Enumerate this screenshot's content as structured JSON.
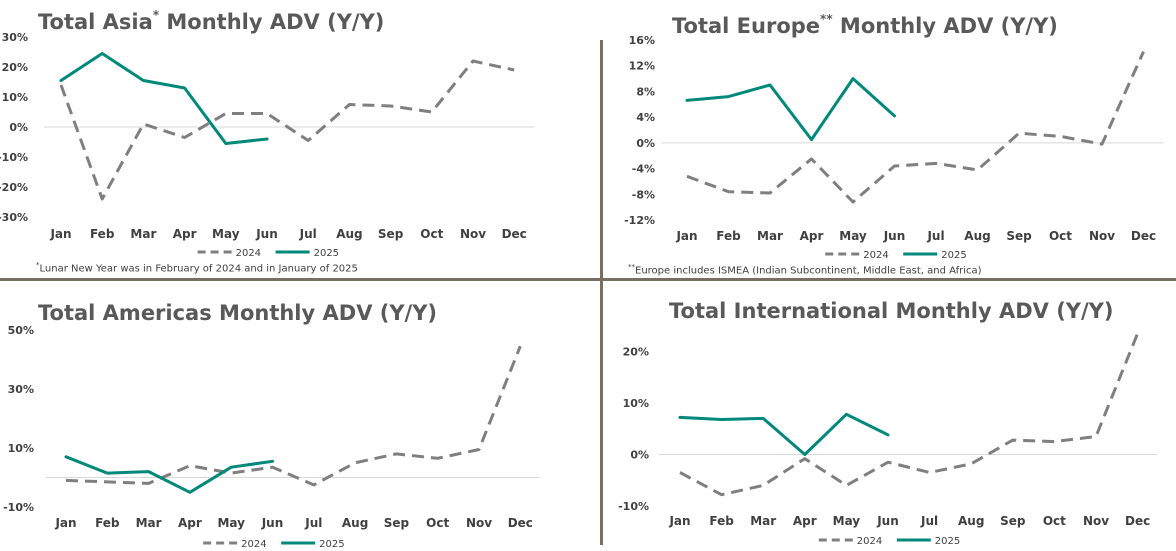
{
  "colors": {
    "s2024": "#7f7f7f",
    "s2025": "#00897b",
    "axis": "#d9d9d9",
    "divider": "#7a6e63",
    "title": "#595959"
  },
  "chart_data": [
    {
      "type": "line",
      "title": "Total Asia",
      "title_mark": "*",
      "title_suffix": " Monthly ADV (Y/Y)",
      "categories": [
        "Jan",
        "Feb",
        "Mar",
        "Apr",
        "May",
        "Jun",
        "Jul",
        "Aug",
        "Sep",
        "Oct",
        "Nov",
        "Dec"
      ],
      "ylim": [
        -30,
        30
      ],
      "yticks": [
        -30,
        -20,
        -10,
        0,
        10,
        20,
        30
      ],
      "ytick_labels": [
        "-30%",
        "-20%",
        "-10%",
        "0%",
        "10%",
        "20%",
        "30%"
      ],
      "series": [
        {
          "name": "2024",
          "values": [
            14,
            -24,
            1,
            -3.5,
            4.5,
            4.5,
            -4.5,
            7.5,
            7,
            5,
            22,
            19
          ]
        },
        {
          "name": "2025",
          "values": [
            15.5,
            24.5,
            15.5,
            13,
            -5.5,
            -4,
            null,
            null,
            null,
            null,
            null,
            null
          ]
        }
      ],
      "note_mark": "*",
      "note": "Lunar New Year was in February of 2024 and in January of 2025",
      "legend": "bottom"
    },
    {
      "type": "line",
      "title": "Total Europe",
      "title_mark": "**",
      "title_suffix": " Monthly ADV (Y/Y)",
      "categories": [
        "Jan",
        "Feb",
        "Mar",
        "Apr",
        "May",
        "Jun",
        "Jul",
        "Aug",
        "Sep",
        "Oct",
        "Nov",
        "Dec"
      ],
      "ylim": [
        -12,
        16
      ],
      "yticks": [
        -12,
        -8,
        -4,
        0,
        4,
        8,
        12,
        16
      ],
      "ytick_labels": [
        "-12%",
        "-8%",
        "-4%",
        "0%",
        "4%",
        "8%",
        "12%",
        "16%"
      ],
      "series": [
        {
          "name": "2024",
          "values": [
            -5.2,
            -7.6,
            -7.8,
            -2.5,
            -9.2,
            -3.6,
            -3.2,
            -4.2,
            1.5,
            1,
            -0.2,
            14.2
          ]
        },
        {
          "name": "2025",
          "values": [
            6.6,
            7.2,
            9,
            0.5,
            10,
            4.2,
            null,
            null,
            null,
            null,
            null,
            null
          ]
        }
      ],
      "note_mark": "**",
      "note": "Europe includes ISMEA (Indian Subcontinent, Middle East, and Africa)",
      "legend": "bottom"
    },
    {
      "type": "line",
      "title": "Total Americas",
      "title_mark": "",
      "title_suffix": " Monthly ADV (Y/Y)",
      "categories": [
        "Jan",
        "Feb",
        "Mar",
        "Apr",
        "May",
        "Jun",
        "Jul",
        "Aug",
        "Sep",
        "Oct",
        "Nov",
        "Dec"
      ],
      "ylim": [
        -10,
        50
      ],
      "yticks": [
        -10,
        10,
        30,
        50
      ],
      "ytick_labels": [
        "-10%",
        "10%",
        "30%",
        "50%"
      ],
      "series": [
        {
          "name": "2024",
          "values": [
            -1,
            -1.5,
            -2,
            4,
            1.5,
            3.5,
            -2.5,
            5,
            8,
            6.5,
            9.5,
            44.5
          ]
        },
        {
          "name": "2025",
          "values": [
            7,
            1.5,
            2,
            -5,
            3.5,
            5.5,
            null,
            null,
            null,
            null,
            null,
            null
          ]
        }
      ],
      "legend": "bottom"
    },
    {
      "type": "line",
      "title": "Total International",
      "title_mark": "",
      "title_suffix": " Monthly ADV (Y/Y)",
      "categories": [
        "Jan",
        "Feb",
        "Mar",
        "Apr",
        "May",
        "Jun",
        "Jul",
        "Aug",
        "Sep",
        "Oct",
        "Nov",
        "Dec"
      ],
      "ylim": [
        -10,
        23
      ],
      "yticks": [
        -10,
        0,
        10,
        20
      ],
      "ytick_labels": [
        "-10%",
        "0%",
        "10%",
        "20%"
      ],
      "series": [
        {
          "name": "2024",
          "values": [
            -3.5,
            -7.8,
            -6,
            -0.8,
            -6,
            -1.5,
            -3.5,
            -1.8,
            2.8,
            2.5,
            3.5,
            23.5
          ]
        },
        {
          "name": "2025",
          "values": [
            7.2,
            6.8,
            7,
            0,
            7.8,
            3.8,
            null,
            null,
            null,
            null,
            null,
            null
          ]
        }
      ],
      "legend": "bottom"
    }
  ]
}
